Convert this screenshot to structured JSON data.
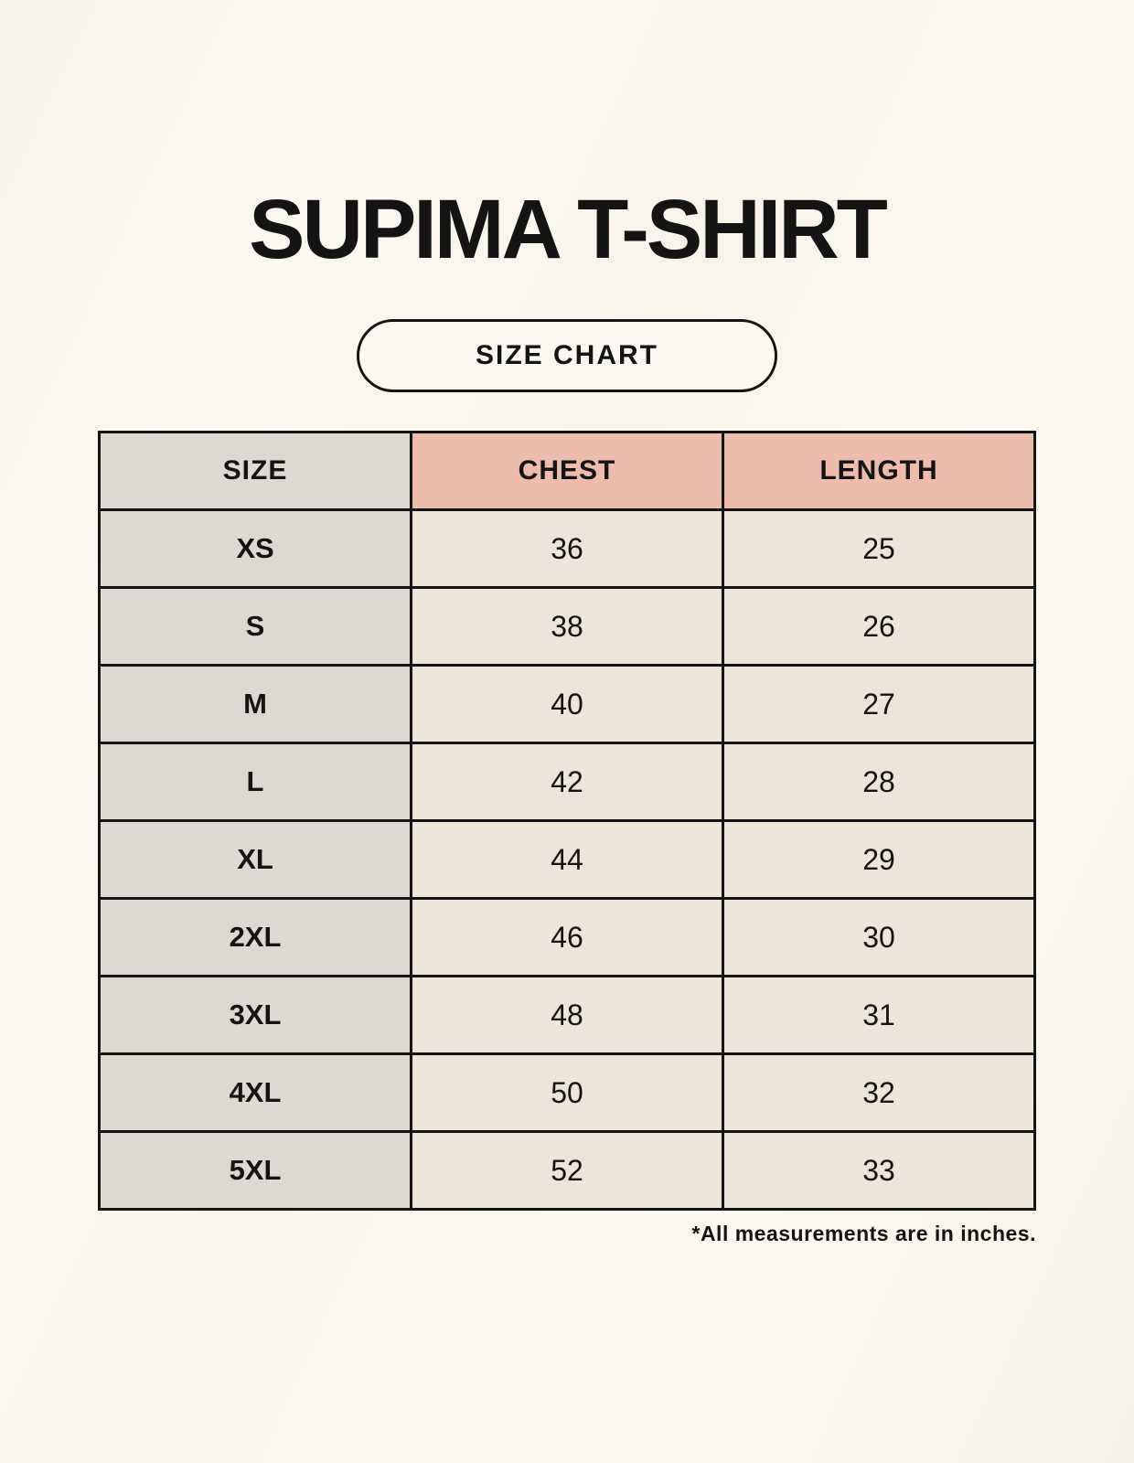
{
  "header": {
    "title": "SUPIMA T-SHIRT",
    "badge_label": "SIZE CHART"
  },
  "chart_data": {
    "type": "table",
    "title": "SUPIMA T-SHIRT",
    "subtitle": "SIZE CHART",
    "columns": [
      "SIZE",
      "CHEST",
      "LENGTH"
    ],
    "rows": [
      [
        "XS",
        "36",
        "25"
      ],
      [
        "S",
        "38",
        "26"
      ],
      [
        "M",
        "40",
        "27"
      ],
      [
        "L",
        "42",
        "28"
      ],
      [
        "XL",
        "44",
        "29"
      ],
      [
        "2XL",
        "46",
        "30"
      ],
      [
        "3XL",
        "48",
        "31"
      ],
      [
        "4XL",
        "50",
        "32"
      ],
      [
        "5XL",
        "52",
        "33"
      ]
    ],
    "units": "inches"
  },
  "footer": {
    "note": "*All measurements are in inches."
  },
  "colors": {
    "page_background": "#faf7ef",
    "header_accent_pink": "#ecbcac",
    "size_column_gray": "#ded8d3",
    "cell_cream": "#ece5d8",
    "table_border": "#141414",
    "text": "#141414"
  }
}
